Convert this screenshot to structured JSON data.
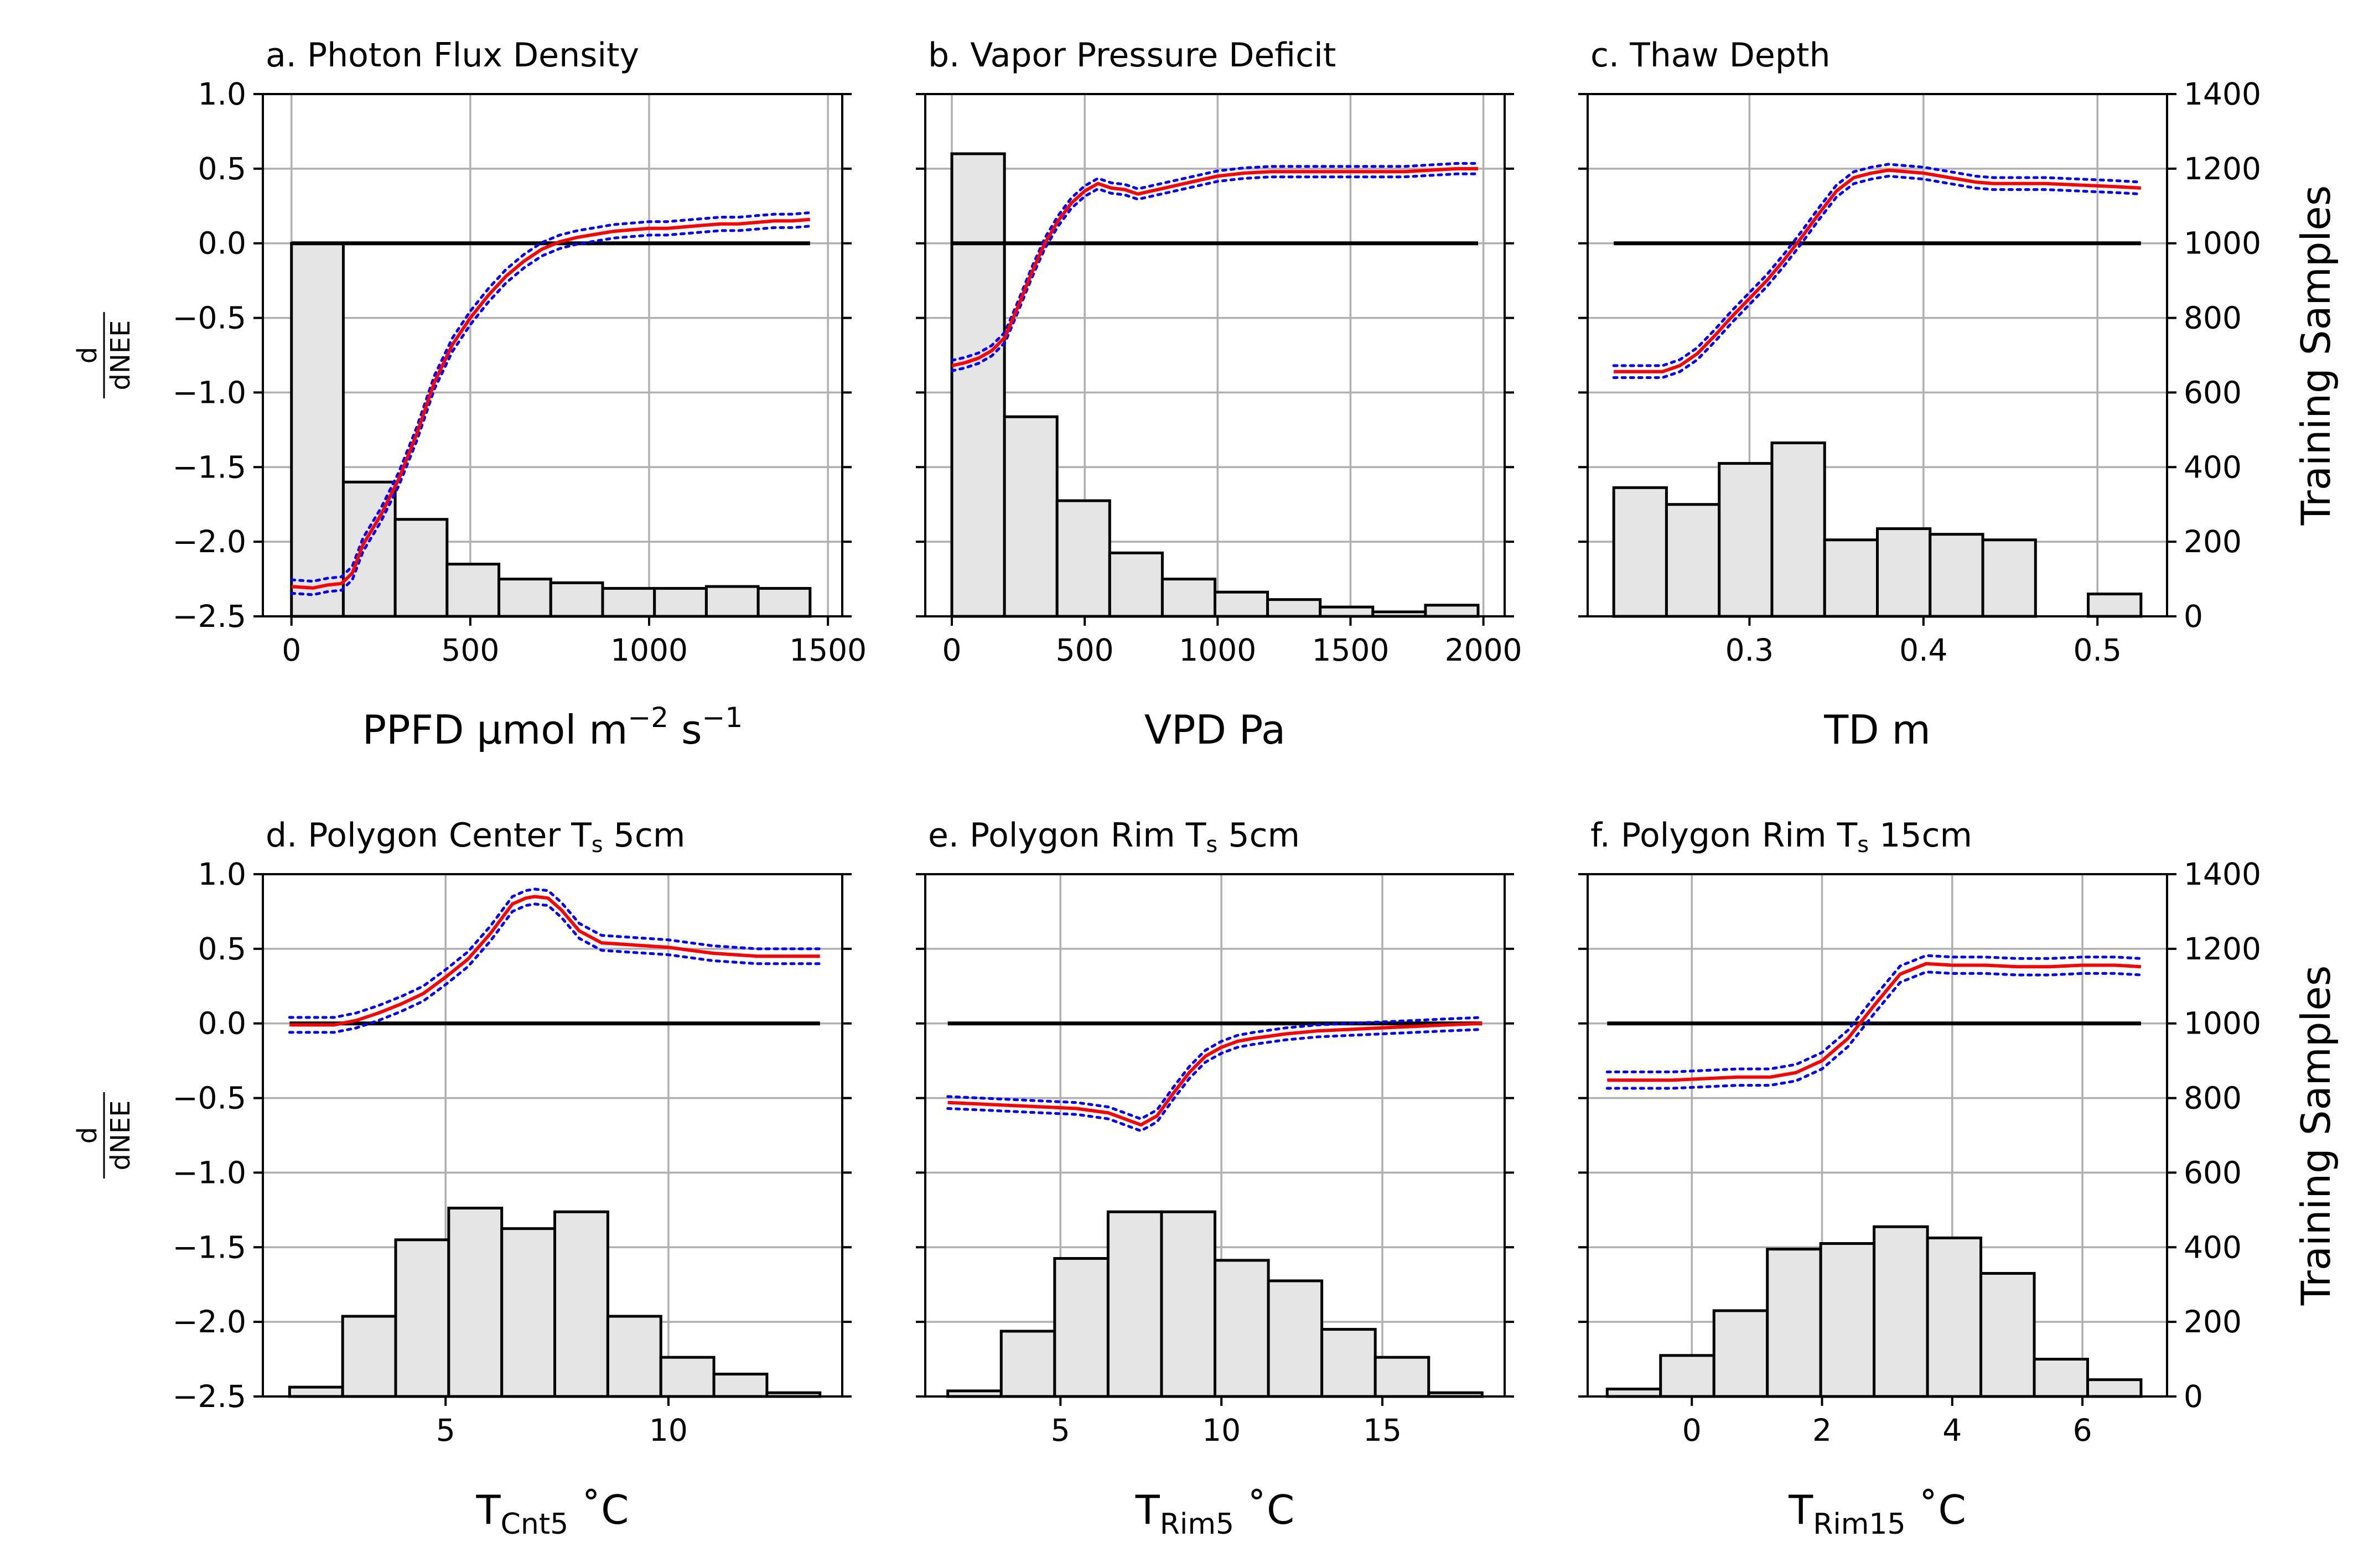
{
  "colors": {
    "response_line": "#ff0000",
    "ci_line": "#0000ff",
    "zero_line": "#000000",
    "hist_fill": "#e5e5e5",
    "hist_edge": "#000000",
    "grid": "#b0b0b0"
  },
  "y_left_label": {
    "numerator": "d",
    "denominator": "dNEE"
  },
  "y_right_label": "Training Samples",
  "chart_data": [
    {
      "type": "line",
      "title": "a. Photon Flux Density",
      "xlabel": {
        "main": "PPFD μmol m",
        "sup1": "−2",
        "mid": " s",
        "sup2": "−1"
      },
      "xlim": [
        -80,
        1540
      ],
      "xticks": [
        0,
        500,
        1000,
        1500
      ],
      "xtick_labels": [
        "0",
        "500",
        "1000",
        "1500"
      ],
      "ylim": [
        -2.5,
        1.0
      ],
      "yticks": [
        1.0,
        0.5,
        0.0,
        -0.5,
        -1.0,
        -1.5,
        -2.0,
        -2.5
      ],
      "ytick_labels": [
        "1.0",
        "0.5",
        "0.0",
        "−0.5",
        "−1.0",
        "−1.5",
        "−2.0",
        "−2.5"
      ],
      "y2lim": [
        0,
        1400
      ],
      "y2ticks": [
        0,
        200,
        400,
        600,
        800,
        1000,
        1200,
        1400
      ],
      "y2tick_labels": [
        "0",
        "200",
        "400",
        "600",
        "800",
        "1000",
        "1200",
        "1400"
      ],
      "grid": true,
      "show_left_ticklabels": true,
      "show_right_ticklabels": false,
      "show_left_label": true,
      "show_right_label": false,
      "zero_line": [
        0,
        1450
      ],
      "histogram": {
        "edges": [
          0,
          145,
          290,
          435,
          580,
          725,
          870,
          1015,
          1160,
          1305,
          1450
        ],
        "counts": [
          1000,
          360,
          260,
          140,
          100,
          90,
          75,
          75,
          80,
          75
        ]
      },
      "response": {
        "x": [
          0,
          60,
          100,
          140,
          170,
          200,
          250,
          300,
          350,
          400,
          450,
          500,
          550,
          600,
          650,
          700,
          750,
          800,
          850,
          900,
          950,
          1000,
          1050,
          1100,
          1150,
          1200,
          1250,
          1300,
          1350,
          1400,
          1450
        ],
        "y": [
          -2.3,
          -2.31,
          -2.29,
          -2.28,
          -2.21,
          -2.02,
          -1.82,
          -1.58,
          -1.28,
          -0.93,
          -0.68,
          -0.5,
          -0.35,
          -0.22,
          -0.12,
          -0.04,
          0.01,
          0.04,
          0.06,
          0.08,
          0.09,
          0.1,
          0.1,
          0.11,
          0.12,
          0.13,
          0.13,
          0.14,
          0.15,
          0.15,
          0.16
        ],
        "ci_halfwidth": 0.045
      }
    },
    {
      "type": "line",
      "title": "b. Vapor Pressure Deficit",
      "xlabel": {
        "main": "VPD Pa"
      },
      "xlim": [
        -100,
        2080
      ],
      "xticks": [
        0,
        500,
        1000,
        1500,
        2000
      ],
      "xtick_labels": [
        "0",
        "500",
        "1000",
        "1500",
        "2000"
      ],
      "ylim": [
        -2.5,
        1.0
      ],
      "yticks": [
        1.0,
        0.5,
        0.0,
        -0.5,
        -1.0,
        -1.5,
        -2.0,
        -2.5
      ],
      "ytick_labels": [
        "1.0",
        "0.5",
        "0.0",
        "−0.5",
        "−1.0",
        "−1.5",
        "−2.0",
        "−2.5"
      ],
      "y2lim": [
        0,
        1400
      ],
      "y2ticks": [
        0,
        200,
        400,
        600,
        800,
        1000,
        1200,
        1400
      ],
      "y2tick_labels": [
        "0",
        "200",
        "400",
        "600",
        "800",
        "1000",
        "1200",
        "1400"
      ],
      "grid": true,
      "show_left_ticklabels": false,
      "show_right_ticklabels": false,
      "show_left_label": false,
      "show_right_label": false,
      "zero_line": [
        0,
        1980
      ],
      "histogram": {
        "edges": [
          0,
          198,
          396,
          594,
          792,
          990,
          1188,
          1386,
          1584,
          1782,
          1980
        ],
        "counts": [
          1240,
          535,
          310,
          170,
          100,
          65,
          45,
          25,
          12,
          30
        ]
      },
      "response": {
        "x": [
          0,
          50,
          100,
          150,
          200,
          250,
          300,
          350,
          400,
          450,
          500,
          550,
          600,
          650,
          700,
          750,
          800,
          900,
          1000,
          1100,
          1200,
          1300,
          1400,
          1500,
          1600,
          1700,
          1800,
          1900,
          1980
        ],
        "y": [
          -0.82,
          -0.8,
          -0.77,
          -0.72,
          -0.63,
          -0.42,
          -0.2,
          0.0,
          0.15,
          0.27,
          0.35,
          0.4,
          0.37,
          0.36,
          0.33,
          0.35,
          0.37,
          0.41,
          0.45,
          0.47,
          0.48,
          0.48,
          0.48,
          0.48,
          0.48,
          0.48,
          0.49,
          0.5,
          0.5
        ],
        "ci_halfwidth": 0.035
      }
    },
    {
      "type": "line",
      "title": "c. Thaw Depth",
      "xlabel": {
        "main": "TD m"
      },
      "xlim": [
        0.207,
        0.54
      ],
      "xticks": [
        0.3,
        0.4,
        0.5
      ],
      "xtick_labels": [
        "0.3",
        "0.4",
        "0.5"
      ],
      "ylim": [
        -2.5,
        1.0
      ],
      "yticks": [
        1.0,
        0.5,
        0.0,
        -0.5,
        -1.0,
        -1.5,
        -2.0,
        -2.5
      ],
      "ytick_labels": [
        "1.0",
        "0.5",
        "0.0",
        "−0.5",
        "−1.0",
        "−1.5",
        "−2.0",
        "−2.5"
      ],
      "y2lim": [
        0,
        1400
      ],
      "y2ticks": [
        0,
        200,
        400,
        600,
        800,
        1000,
        1200,
        1400
      ],
      "y2tick_labels": [
        "0",
        "200",
        "400",
        "600",
        "800",
        "1000",
        "1200",
        "1400"
      ],
      "grid": true,
      "show_left_ticklabels": false,
      "show_right_ticklabels": true,
      "show_left_label": false,
      "show_right_label": true,
      "zero_line": [
        0.222,
        0.525
      ],
      "histogram": {
        "edges": [
          0.222,
          0.2523,
          0.2826,
          0.3129,
          0.3432,
          0.3735,
          0.4038,
          0.4341,
          0.4644,
          0.4947,
          0.525
        ],
        "counts": [
          345,
          300,
          410,
          465,
          205,
          235,
          220,
          205,
          0,
          60
        ]
      },
      "response": {
        "x": [
          0.222,
          0.235,
          0.25,
          0.26,
          0.27,
          0.28,
          0.29,
          0.3,
          0.31,
          0.32,
          0.33,
          0.34,
          0.35,
          0.36,
          0.37,
          0.38,
          0.39,
          0.4,
          0.41,
          0.42,
          0.43,
          0.44,
          0.45,
          0.47,
          0.49,
          0.51,
          0.525
        ],
        "y": [
          -0.86,
          -0.86,
          -0.86,
          -0.82,
          -0.74,
          -0.62,
          -0.49,
          -0.37,
          -0.25,
          -0.11,
          0.04,
          0.2,
          0.35,
          0.44,
          0.47,
          0.49,
          0.48,
          0.47,
          0.45,
          0.43,
          0.41,
          0.4,
          0.4,
          0.4,
          0.39,
          0.38,
          0.37
        ],
        "ci_halfwidth": 0.04
      }
    },
    {
      "type": "line",
      "title": {
        "main": "d. Polygon Center T",
        "sub": "s",
        "after": " 5cm"
      },
      "xlabel": {
        "main": "T",
        "sub": "Cnt5",
        "after": " ˚C"
      },
      "xlim": [
        0.9,
        13.9
      ],
      "xticks": [
        5,
        10
      ],
      "xtick_labels": [
        "5",
        "10"
      ],
      "ylim": [
        -2.5,
        1.0
      ],
      "yticks": [
        1.0,
        0.5,
        0.0,
        -0.5,
        -1.0,
        -1.5,
        -2.0,
        -2.5
      ],
      "ytick_labels": [
        "1.0",
        "0.5",
        "0.0",
        "−0.5",
        "−1.0",
        "−1.5",
        "−2.0",
        "−2.5"
      ],
      "y2lim": [
        0,
        1400
      ],
      "y2ticks": [
        0,
        200,
        400,
        600,
        800,
        1000,
        1200,
        1400
      ],
      "y2tick_labels": [
        "0",
        "200",
        "400",
        "600",
        "800",
        "1000",
        "1200",
        "1400"
      ],
      "grid": true,
      "show_left_ticklabels": true,
      "show_right_ticklabels": false,
      "show_left_label": true,
      "show_right_label": false,
      "zero_line": [
        1.5,
        13.4
      ],
      "histogram": {
        "edges": [
          1.5,
          2.69,
          3.88,
          5.07,
          6.26,
          7.45,
          8.64,
          9.83,
          11.02,
          12.21,
          13.4
        ],
        "counts": [
          25,
          215,
          420,
          505,
          450,
          495,
          215,
          105,
          60,
          10
        ]
      },
      "response": {
        "x": [
          1.5,
          2.0,
          2.5,
          3.0,
          3.5,
          4.0,
          4.5,
          5.0,
          5.5,
          6.0,
          6.5,
          6.8,
          7.0,
          7.3,
          7.6,
          8.0,
          8.5,
          9.0,
          9.5,
          10.0,
          10.5,
          11.0,
          11.5,
          12.0,
          12.5,
          13.0,
          13.4
        ],
        "y": [
          -0.01,
          -0.01,
          -0.01,
          0.02,
          0.07,
          0.13,
          0.2,
          0.31,
          0.43,
          0.6,
          0.8,
          0.84,
          0.85,
          0.84,
          0.76,
          0.62,
          0.54,
          0.53,
          0.52,
          0.51,
          0.49,
          0.47,
          0.46,
          0.45,
          0.45,
          0.45,
          0.45
        ],
        "ci_halfwidth": 0.05
      }
    },
    {
      "type": "line",
      "title": {
        "main": "e. Polygon Rim T",
        "sub": "s",
        "after": " 5cm"
      },
      "xlabel": {
        "main": "T",
        "sub": "Rim5",
        "after": " ˚C"
      },
      "xlim": [
        0.8,
        18.8
      ],
      "xticks": [
        5,
        10,
        15
      ],
      "xtick_labels": [
        "5",
        "10",
        "15"
      ],
      "ylim": [
        -2.5,
        1.0
      ],
      "yticks": [
        1.0,
        0.5,
        0.0,
        -0.5,
        -1.0,
        -1.5,
        -2.0,
        -2.5
      ],
      "ytick_labels": [
        "1.0",
        "0.5",
        "0.0",
        "−0.5",
        "−1.0",
        "−1.5",
        "−2.0",
        "−2.5"
      ],
      "y2lim": [
        0,
        1400
      ],
      "y2ticks": [
        0,
        200,
        400,
        600,
        800,
        1000,
        1200,
        1400
      ],
      "y2tick_labels": [
        "0",
        "200",
        "400",
        "600",
        "800",
        "1000",
        "1200",
        "1400"
      ],
      "grid": true,
      "show_left_ticklabels": false,
      "show_right_ticklabels": false,
      "show_left_label": false,
      "show_right_label": false,
      "zero_line": [
        1.5,
        18.1
      ],
      "histogram": {
        "edges": [
          1.5,
          3.16,
          4.82,
          6.48,
          8.14,
          9.8,
          11.46,
          13.12,
          14.78,
          16.44,
          18.1
        ],
        "counts": [
          15,
          175,
          370,
          495,
          495,
          365,
          310,
          180,
          105,
          10
        ]
      },
      "response": {
        "x": [
          1.5,
          2.5,
          3.5,
          4.5,
          5.5,
          6.5,
          7.0,
          7.5,
          8.0,
          8.5,
          9.0,
          9.5,
          10.0,
          10.5,
          11.0,
          12.0,
          13.0,
          14.0,
          15.0,
          16.0,
          17.0,
          18.1
        ],
        "y": [
          -0.53,
          -0.54,
          -0.55,
          -0.56,
          -0.57,
          -0.6,
          -0.64,
          -0.68,
          -0.62,
          -0.47,
          -0.33,
          -0.22,
          -0.16,
          -0.12,
          -0.1,
          -0.07,
          -0.05,
          -0.04,
          -0.03,
          -0.02,
          -0.01,
          0.0
        ],
        "ci_halfwidth": 0.04
      }
    },
    {
      "type": "line",
      "title": {
        "main": "f. Polygon Rim T",
        "sub": "s",
        "after": " 15cm"
      },
      "xlabel": {
        "main": "T",
        "sub": "Rim15",
        "after": " ˚C"
      },
      "xlim": [
        -1.6,
        7.3
      ],
      "xticks": [
        0,
        2,
        4,
        6
      ],
      "xtick_labels": [
        "0",
        "2",
        "4",
        "6"
      ],
      "ylim": [
        -2.5,
        1.0
      ],
      "yticks": [
        1.0,
        0.5,
        0.0,
        -0.5,
        -1.0,
        -1.5,
        -2.0,
        -2.5
      ],
      "ytick_labels": [
        "1.0",
        "0.5",
        "0.0",
        "−0.5",
        "−1.0",
        "−1.5",
        "−2.0",
        "−2.5"
      ],
      "y2lim": [
        0,
        1400
      ],
      "y2ticks": [
        0,
        200,
        400,
        600,
        800,
        1000,
        1200,
        1400
      ],
      "y2tick_labels": [
        "0",
        "200",
        "400",
        "600",
        "800",
        "1000",
        "1200",
        "1400"
      ],
      "grid": true,
      "show_left_ticklabels": false,
      "show_right_ticklabels": true,
      "show_left_label": false,
      "show_right_label": true,
      "zero_line": [
        -1.3,
        6.9
      ],
      "histogram": {
        "edges": [
          -1.3,
          -0.48,
          0.34,
          1.16,
          1.98,
          2.8,
          3.62,
          4.44,
          5.26,
          6.08,
          6.9
        ],
        "counts": [
          20,
          110,
          230,
          395,
          410,
          455,
          425,
          330,
          100,
          45
        ]
      },
      "response": {
        "x": [
          -1.3,
          -0.8,
          -0.3,
          0.2,
          0.7,
          1.2,
          1.6,
          2.0,
          2.4,
          2.8,
          3.2,
          3.6,
          4.0,
          4.5,
          5.0,
          5.5,
          6.0,
          6.5,
          6.9
        ],
        "y": [
          -0.38,
          -0.38,
          -0.38,
          -0.37,
          -0.36,
          -0.36,
          -0.33,
          -0.25,
          -0.1,
          0.12,
          0.33,
          0.4,
          0.39,
          0.39,
          0.38,
          0.38,
          0.39,
          0.39,
          0.38
        ],
        "ci_halfwidth": 0.055
      }
    }
  ]
}
